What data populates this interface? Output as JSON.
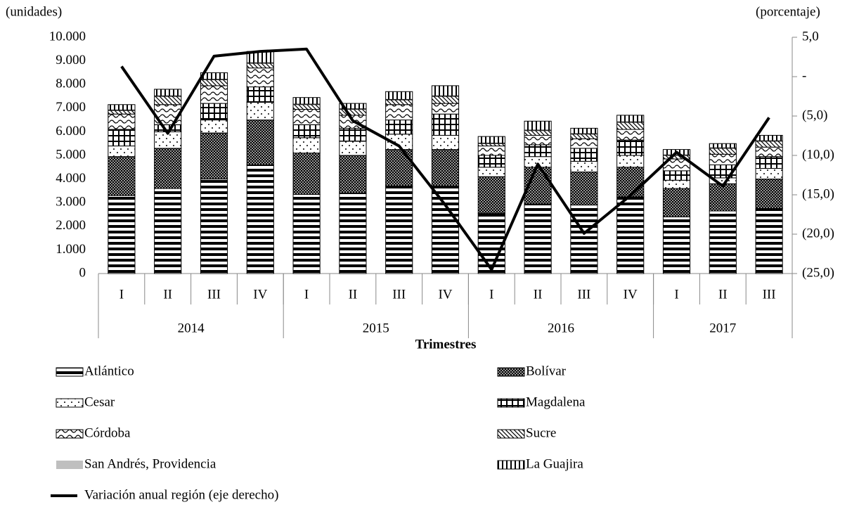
{
  "chart_data": {
    "type": "stacked-bar-line",
    "y_label": "(unidades)",
    "y2_label": "(porcentaje)",
    "x_label": "Trimestres",
    "categories": [
      "I",
      "II",
      "III",
      "IV",
      "I",
      "II",
      "III",
      "IV",
      "I",
      "II",
      "III",
      "IV",
      "I",
      "II",
      "III"
    ],
    "groups": [
      {
        "label": "2014",
        "span": 4
      },
      {
        "label": "2015",
        "span": 4
      },
      {
        "label": "2016",
        "span": 4
      },
      {
        "label": "2017",
        "span": 3
      }
    ],
    "ylim": [
      0,
      10000
    ],
    "yticks": [
      0,
      {
        "value": 1000,
        "label": "1.000"
      },
      {
        "value": 2000,
        "label": "2.000"
      },
      {
        "value": 3000,
        "label": "3.000"
      },
      {
        "value": 4000,
        "label": "4.000"
      },
      {
        "value": 5000,
        "label": "5.000"
      },
      {
        "value": 6000,
        "label": "6.000"
      },
      {
        "value": 7000,
        "label": "7.000"
      },
      {
        "value": 8000,
        "label": "8.000"
      },
      {
        "value": 9000,
        "label": "9.000"
      },
      {
        "value": 10000,
        "label": "10.000"
      }
    ],
    "y2lim": [
      -25,
      5
    ],
    "y2ticks": [
      {
        "value": -25,
        "label": "(25,0)"
      },
      {
        "value": -20,
        "label": "(20,0)"
      },
      {
        "value": -15,
        "label": "(15,0)"
      },
      {
        "value": -10,
        "label": "(10,0)"
      },
      {
        "value": -5,
        "label": "(5,0)"
      },
      {
        "value": 0,
        "label": "-"
      },
      {
        "value": 5,
        "label": "5,0"
      }
    ],
    "series": [
      {
        "name": "Atlántico",
        "color": "#000000",
        "pattern": "hlines",
        "values": [
          3300,
          3600,
          4000,
          4600,
          3350,
          3400,
          3700,
          3700,
          2550,
          2950,
          2900,
          3250,
          2400,
          2650,
          2750
        ]
      },
      {
        "name": "Bolívar",
        "color": "#000000",
        "pattern": "dense-dots",
        "values": [
          1650,
          1700,
          1950,
          1900,
          1750,
          1600,
          1550,
          1550,
          1550,
          1550,
          1400,
          1250,
          1200,
          1150,
          1250
        ]
      },
      {
        "name": "Cesar",
        "color": "#000000",
        "pattern": "sparse-dots",
        "values": [
          450,
          700,
          550,
          750,
          650,
          600,
          650,
          600,
          400,
          450,
          450,
          500,
          350,
          250,
          450
        ]
      },
      {
        "name": "Magdalena",
        "color": "#000000",
        "pattern": "grid",
        "values": [
          700,
          300,
          700,
          650,
          550,
          550,
          600,
          900,
          500,
          500,
          550,
          650,
          400,
          550,
          500
        ]
      },
      {
        "name": "Córdoba",
        "color": "#000000",
        "pattern": "waves",
        "values": [
          650,
          850,
          750,
          800,
          650,
          550,
          650,
          450,
          400,
          400,
          400,
          450,
          500,
          450,
          400
        ]
      },
      {
        "name": "Sucre",
        "color": "#000000",
        "pattern": "diag",
        "values": [
          150,
          350,
          250,
          200,
          200,
          250,
          200,
          300,
          100,
          200,
          200,
          300,
          150,
          250,
          250
        ]
      },
      {
        "name": "San Andrés, Providencia",
        "color": "#bfbfbf",
        "pattern": "solid",
        "values": [
          20,
          20,
          20,
          20,
          20,
          20,
          20,
          20,
          20,
          20,
          20,
          20,
          20,
          20,
          20
        ]
      },
      {
        "name": "La Guajira",
        "color": "#000000",
        "pattern": "vlines",
        "values": [
          230,
          280,
          280,
          480,
          280,
          230,
          330,
          430,
          280,
          380,
          230,
          280,
          230,
          180,
          230
        ]
      },
      {
        "name": "Variación anual región (eje derecho)",
        "color": "#000000",
        "axis": "y2",
        "values": [
          1.3,
          -7.2,
          2.6,
          3.2,
          3.5,
          -5.6,
          -8.8,
          -16.3,
          -24.5,
          -11.1,
          -19.9,
          -15.1,
          -9.6,
          -13.9,
          -5.2
        ]
      }
    ]
  }
}
